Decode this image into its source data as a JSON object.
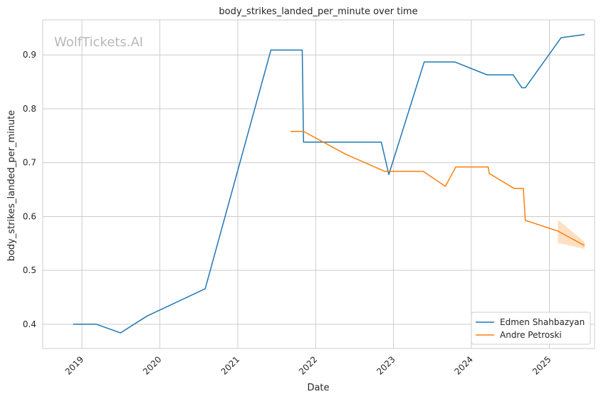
{
  "watermark": "WolfTickets.AI",
  "chart_data": {
    "type": "line",
    "title": "body_strikes_landed_per_minute over time",
    "xlabel": "Date",
    "ylabel": "body_strikes_landed_per_minute",
    "xlim": [
      "2018-07-01",
      "2025-08-01"
    ],
    "ylim": [
      0.355,
      0.965
    ],
    "x_ticks": [
      "2019",
      "2020",
      "2021",
      "2022",
      "2023",
      "2024",
      "2025"
    ],
    "y_ticks": [
      "0.4",
      "0.5",
      "0.6",
      "0.7",
      "0.8",
      "0.9"
    ],
    "grid": true,
    "legend_position": "bottom-right",
    "series": [
      {
        "name": "Edmen Shahbazyan",
        "color": "#1f77b4",
        "points": [
          [
            "2018-11-20",
            0.4
          ],
          [
            "2019-03-10",
            0.4
          ],
          [
            "2019-07-01",
            0.384
          ],
          [
            "2019-11-01",
            0.415
          ],
          [
            "2020-08-01",
            0.466
          ],
          [
            "2021-06-05",
            0.909
          ],
          [
            "2021-10-30",
            0.909
          ],
          [
            "2021-11-05",
            0.738
          ],
          [
            "2022-11-05",
            0.738
          ],
          [
            "2022-12-10",
            0.678
          ],
          [
            "2023-05-25",
            0.887
          ],
          [
            "2023-10-15",
            0.887
          ],
          [
            "2024-03-15",
            0.863
          ],
          [
            "2024-07-15",
            0.863
          ],
          [
            "2024-08-25",
            0.839
          ],
          [
            "2024-09-10",
            0.839
          ],
          [
            "2025-02-25",
            0.932
          ],
          [
            "2025-06-15",
            0.938
          ]
        ]
      },
      {
        "name": "Andre Petroski",
        "color": "#ff7f0e",
        "points": [
          [
            "2021-09-05",
            0.758
          ],
          [
            "2021-11-05",
            0.758
          ],
          [
            "2022-05-20",
            0.716
          ],
          [
            "2022-11-20",
            0.684
          ],
          [
            "2023-05-20",
            0.684
          ],
          [
            "2023-09-01",
            0.656
          ],
          [
            "2023-10-20",
            0.692
          ],
          [
            "2024-03-20",
            0.692
          ],
          [
            "2024-03-25",
            0.68
          ],
          [
            "2024-07-20",
            0.652
          ],
          [
            "2024-09-01",
            0.652
          ],
          [
            "2024-09-10",
            0.593
          ],
          [
            "2025-02-10",
            0.573
          ],
          [
            "2025-06-15",
            0.546
          ]
        ],
        "band": [
          [
            "2025-02-10",
            0.551,
            0.594
          ],
          [
            "2025-06-15",
            0.54,
            0.553
          ]
        ]
      }
    ]
  }
}
